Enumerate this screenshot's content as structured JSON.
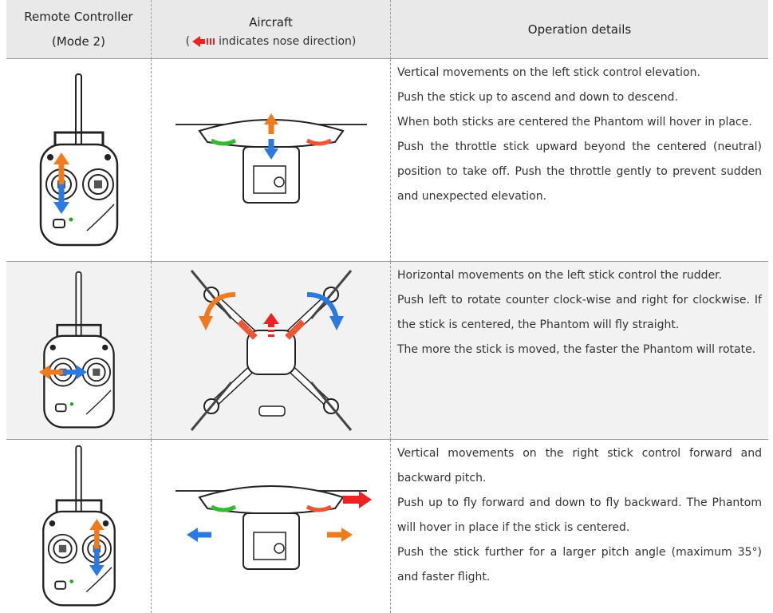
{
  "header": {
    "col1": [
      "Remote Controller",
      "(Mode 2)"
    ],
    "col2": {
      "title": "Aircraft",
      "note_open": "(",
      "note": "indicates nose direction)"
    },
    "col3": "Operation details"
  },
  "rows": [
    {
      "details": [
        "Vertical movements on the left stick control elevation.",
        "Push the stick up to ascend and down to descend.",
        "When both sticks are centered the Phantom will hover in place.",
        "Push the throttle stick upward beyond the centered (neutral) position to take off. Push the throttle gently to prevent sudden and unexpected elevation."
      ]
    },
    {
      "details": [
        "Horizontal movements on the left stick control the rudder.",
        "Push left to rotate counter clock-wise and right for clockwise. If the stick is centered, the Phantom will fly straight.",
        "The more the stick is moved, the faster the Phantom will rotate."
      ]
    },
    {
      "details": [
        "Vertical movements on the right stick control forward and backward pitch.",
        "Push up to fly forward and down to fly backward. The Phantom will hover in place if the stick is centered.",
        "Push the stick further for a larger pitch angle (maximum 35°) and faster flight."
      ]
    }
  ]
}
